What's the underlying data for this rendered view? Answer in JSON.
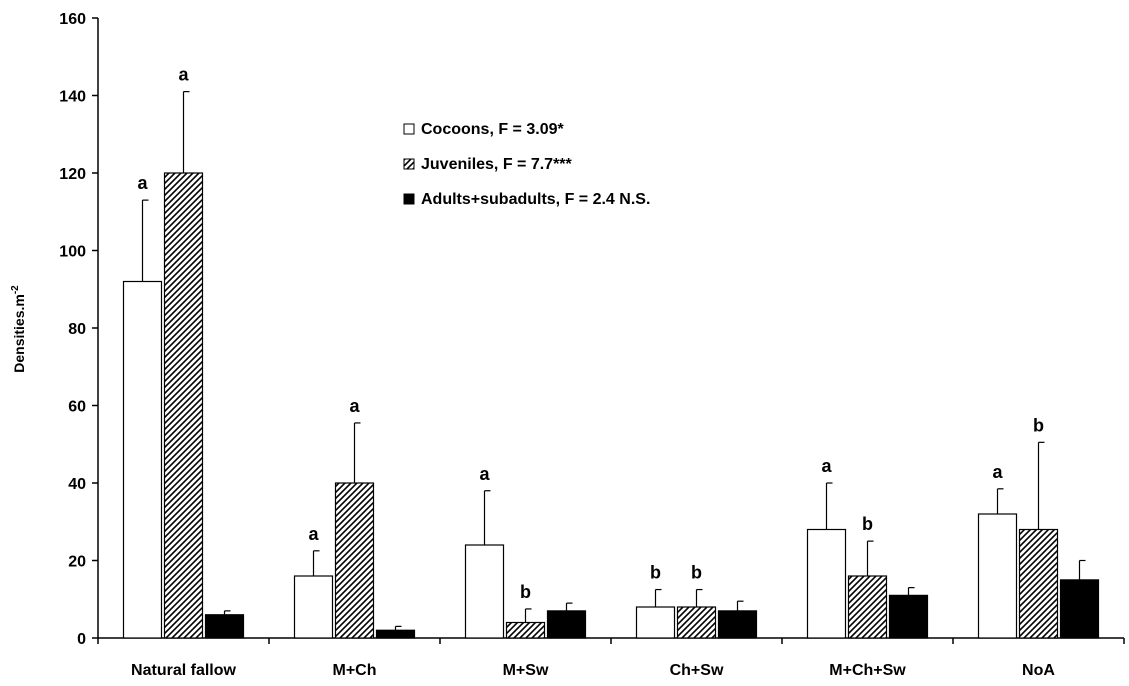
{
  "chart_data": {
    "type": "bar",
    "ylabel": "Densities.m",
    "ylabel_sup": "-2",
    "ylim": [
      0,
      160
    ],
    "yticks": [
      0,
      20,
      40,
      60,
      80,
      100,
      120,
      140,
      160
    ],
    "grid": false,
    "legend_position": "top-center",
    "categories": [
      "Natural fallow",
      "M+Ch",
      "M+Sw",
      "Ch+Sw",
      "M+Ch+Sw",
      "NoA"
    ],
    "series": [
      {
        "name": "Cocoons, F = 3.09*",
        "style": "white",
        "values": [
          92,
          16,
          24,
          8,
          28,
          32
        ],
        "error_upper": [
          113,
          22.5,
          38,
          12.5,
          40,
          38.5
        ],
        "labels": [
          "a",
          "a",
          "a",
          "b",
          "a",
          "a"
        ]
      },
      {
        "name": "Juveniles, F = 7.7***",
        "style": "hatched",
        "values": [
          120,
          40,
          4,
          8,
          16,
          28
        ],
        "error_upper": [
          141,
          55.5,
          7.5,
          12.5,
          25,
          50.5
        ],
        "labels": [
          "a",
          "a",
          "b",
          "b",
          "b",
          "b"
        ]
      },
      {
        "name": "Adults+subadults, F = 2.4 N.S.",
        "style": "black",
        "values": [
          6,
          2,
          7,
          7,
          11,
          15
        ],
        "error_upper": [
          7,
          3,
          9,
          9.5,
          13,
          20
        ],
        "labels": [
          "",
          "",
          "",
          "",
          "",
          ""
        ]
      }
    ]
  }
}
